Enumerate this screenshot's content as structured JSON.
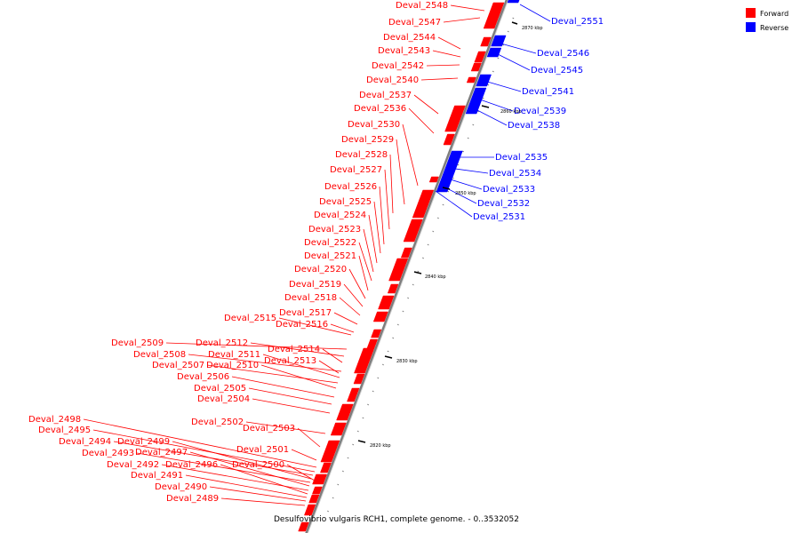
{
  "title": "Desulfovibrio vulgaris RCH1, complete genome. - 0..3532052",
  "legend": [
    {
      "label": "Forward",
      "color": "#ff0000"
    },
    {
      "label": "Reverse",
      "color": "#0000ff"
    }
  ],
  "colors": {
    "forward": "#ff0000",
    "reverse": "#0000ff",
    "backbone": "#888888"
  },
  "kbp_labels": [
    "2870 kbp",
    "2860 kbp",
    "2850 kbp",
    "2840 kbp",
    "2830 kbp",
    "2820 kbp"
  ],
  "forward_genes": [
    "Deval_2548",
    "Deval_2547",
    "Deval_2544",
    "Deval_2543",
    "Deval_2542",
    "Deval_2540",
    "Deval_2537",
    "Deval_2536",
    "Deval_2530",
    "Deval_2529",
    "Deval_2528",
    "Deval_2527",
    "Deval_2526",
    "Deval_2525",
    "Deval_2524",
    "Deval_2523",
    "Deval_2522",
    "Deval_2521",
    "Deval_2520",
    "Deval_2519",
    "Deval_2518",
    "Deval_2517",
    "Deval_2515",
    "Deval_2516",
    "Deval_2509",
    "Deval_2512",
    "Deval_2514",
    "Deval_2508",
    "Deval_2511",
    "Deval_2507",
    "Deval_2510",
    "Deval_2513",
    "Deval_2506",
    "Deval_2505",
    "Deval_2504",
    "Deval_2502",
    "Deval_2503",
    "Deval_2498",
    "Deval_2495",
    "Deval_2494",
    "Deval_2499",
    "Deval_2493",
    "Deval_2497",
    "Deval_2501",
    "Deval_2492",
    "Deval_2496",
    "Deval_2500",
    "Deval_2491",
    "Deval_2490",
    "Deval_2489"
  ],
  "reverse_genes": [
    "Deval_2551",
    "Deval_2546",
    "Deval_2545",
    "Deval_2541",
    "Deval_2539",
    "Deval_2538",
    "Deval_2535",
    "Deval_2534",
    "Deval_2533",
    "Deval_2532",
    "Deval_2531"
  ]
}
